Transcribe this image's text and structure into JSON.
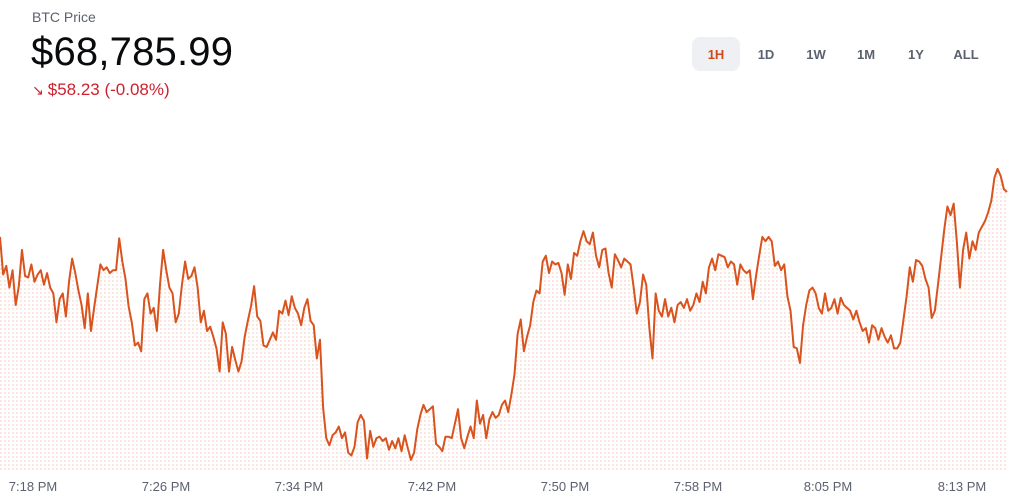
{
  "header": {
    "title": "BTC Price",
    "price": "$68,785.99",
    "change_arrow_icon": "arrow-down-right-icon",
    "change_text": "$58.23 (-0.08%)",
    "change_color": "#cf202f"
  },
  "ranges": [
    {
      "label": "1H",
      "active": true
    },
    {
      "label": "1D",
      "active": false
    },
    {
      "label": "1W",
      "active": false
    },
    {
      "label": "1M",
      "active": false
    },
    {
      "label": "1Y",
      "active": false
    },
    {
      "label": "ALL",
      "active": false
    }
  ],
  "colors": {
    "line": "#d9531e",
    "fill_dots": "#f7d6c8",
    "active_range_text": "#cf4a1a"
  },
  "chart_data": {
    "type": "line",
    "title": "BTC Price",
    "x_tick_labels": [
      "7:18 PM",
      "7:26 PM",
      "7:34 PM",
      "7:42 PM",
      "7:50 PM",
      "7:58 PM",
      "8:05 PM",
      "8:13 PM"
    ],
    "y_range_usd": [
      68600,
      68830
    ],
    "grid": false,
    "series": [
      {
        "values": [
          68761,
          68735,
          68741,
          68726,
          68738,
          68714,
          68727,
          68752,
          68734,
          68733,
          68742,
          68730,
          68735,
          68738,
          68728,
          68736,
          68726,
          68722,
          68702,
          68718,
          68722,
          68706,
          68730,
          68746,
          68736,
          68724,
          68714,
          68698,
          68722,
          68696,
          68712,
          68727,
          68742,
          68738,
          68740,
          68736,
          68738,
          68738,
          68760,
          68744,
          68732,
          68713,
          68702,
          68686,
          68688,
          68682,
          68718,
          68722,
          68708,
          68712,
          68696,
          68728,
          68752,
          68738,
          68726,
          68722,
          68702,
          68708,
          68728,
          68744,
          68732,
          68734,
          68740,
          68726,
          68702,
          68710,
          68696,
          68699,
          68692,
          68684,
          68668,
          68702,
          68694,
          68668,
          68685,
          68676,
          68668,
          68675,
          68692,
          68703,
          68713,
          68727,
          68706,
          68703,
          68686,
          68685,
          68690,
          68695,
          68690,
          68710,
          68708,
          68717,
          68707,
          68720,
          68712,
          68708,
          68700,
          68712,
          68718,
          68703,
          68700,
          68677,
          68690,
          68643,
          68622,
          68617,
          68624,
          68626,
          68630,
          68622,
          68626,
          68612,
          68610,
          68616,
          68633,
          68638,
          68634,
          68608,
          68627,
          68616,
          68622,
          68623,
          68620,
          68622,
          68614,
          68620,
          68615,
          68622,
          68613,
          68624,
          68615,
          68607,
          68612,
          68628,
          68638,
          68645,
          68640,
          68642,
          68644,
          68618,
          68616,
          68613,
          68623,
          68623,
          68622,
          68632,
          68642,
          68622,
          68615,
          68623,
          68630,
          68622,
          68648,
          68632,
          68638,
          68622,
          68635,
          68640,
          68636,
          68638,
          68645,
          68648,
          68640,
          68652,
          68666,
          68694,
          68704,
          68682,
          68692,
          68700,
          68716,
          68724,
          68722,
          68744,
          68748,
          68736,
          68744,
          68742,
          68743,
          68736,
          68721,
          68742,
          68732,
          68750,
          68748,
          68758,
          68765,
          68758,
          68756,
          68764,
          68748,
          68740,
          68752,
          68753,
          68736,
          68726,
          68749,
          68745,
          68740,
          68746,
          68744,
          68742,
          68726,
          68708,
          68716,
          68735,
          68728,
          68698,
          68677,
          68722,
          68710,
          68706,
          68718,
          68706,
          68712,
          68702,
          68714,
          68716,
          68712,
          68718,
          68710,
          68714,
          68722,
          68716,
          68730,
          68722,
          68740,
          68746,
          68738,
          68749,
          68748,
          68747,
          68740,
          68744,
          68742,
          68728,
          68742,
          68738,
          68736,
          68738,
          68718,
          68734,
          68748,
          68761,
          68758,
          68761,
          68758,
          68741,
          68744,
          68738,
          68742,
          68720,
          68710,
          68685,
          68684,
          68674,
          68700,
          68714,
          68724,
          68726,
          68722,
          68712,
          68708,
          68722,
          68710,
          68712,
          68718,
          68708,
          68719,
          68714,
          68712,
          68710,
          68704,
          68710,
          68702,
          68696,
          68698,
          68688,
          68700,
          68698,
          68690,
          68698,
          68692,
          68688,
          68693,
          68684,
          68684,
          68688,
          68704,
          68720,
          68740,
          68730,
          68745,
          68744,
          68741,
          68732,
          68726,
          68705,
          68710,
          68728,
          68747,
          68766,
          68782,
          68776,
          68784,
          68758,
          68726,
          68752,
          68764,
          68746,
          68758,
          68752,
          68764,
          68768,
          68772,
          68778,
          68786,
          68802,
          68808,
          68803,
          68794,
          68792
        ]
      }
    ]
  }
}
